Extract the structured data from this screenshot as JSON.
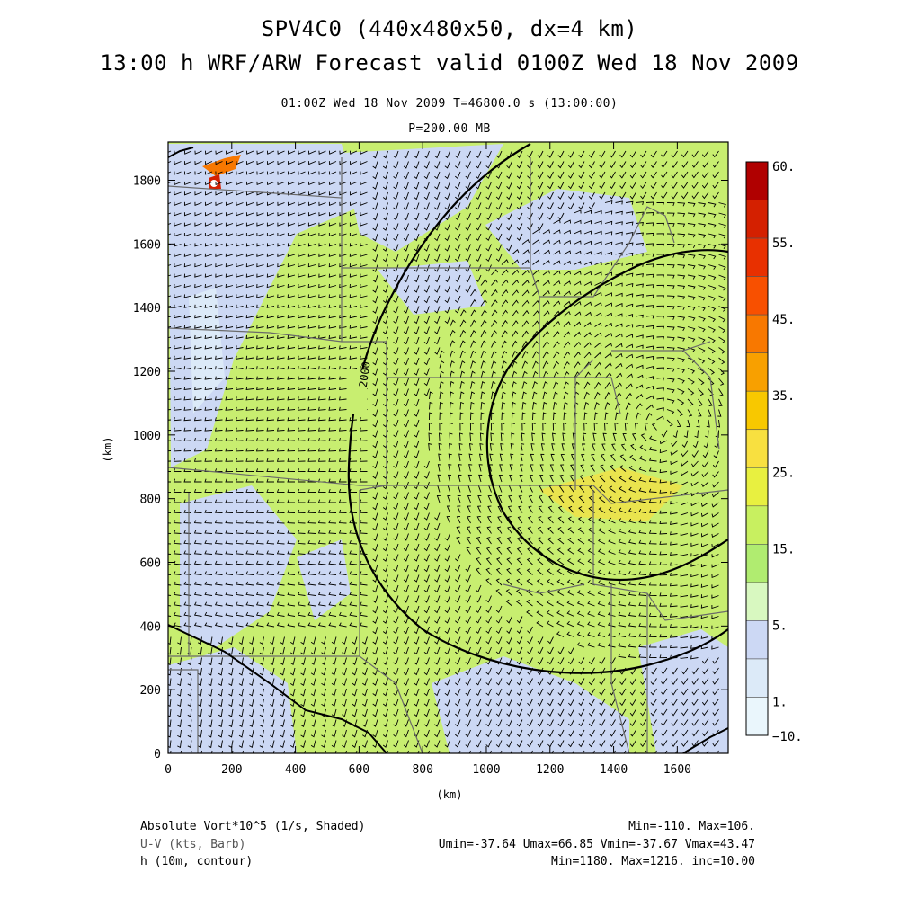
{
  "header": {
    "title1": "SPV4C0 (440x480x50, dx=4 km)",
    "title2": "13:00 h WRF/ARW Forecast valid 0100Z Wed 18 Nov 2009",
    "subtitle_time": "01:00Z Wed 18 Nov 2009     T=46800.0 s (13:00:00)",
    "subtitle_level": "P=200.00 MB"
  },
  "axes": {
    "x_label": "(km)",
    "y_label": "(km)",
    "x_range": [
      0,
      1760
    ],
    "y_range": [
      0,
      1920
    ],
    "x_ticks": [
      "0",
      "200",
      "400",
      "600",
      "800",
      "1000",
      "1200",
      "1400",
      "1600"
    ],
    "y_ticks": [
      "0",
      "200",
      "400",
      "600",
      "800",
      "1000",
      "1200",
      "1400",
      "1600",
      "1800"
    ]
  },
  "colorbar": {
    "labels": [
      "60.",
      "55.",
      "45.",
      "35.",
      "25.",
      "15.",
      "5.",
      "1.",
      "−10."
    ],
    "colors": [
      "#b00000",
      "#d42000",
      "#e83000",
      "#f85000",
      "#f87800",
      "#f8a000",
      "#f8c800",
      "#f8e040",
      "#e8f040",
      "#c8f060",
      "#b0ec70",
      "#d8f8c0",
      "#ccd8f4",
      "#dceaf8",
      "#eaf6fc"
    ]
  },
  "contour": {
    "label": "2000"
  },
  "footer": {
    "line1_left": "Absolute Vort*10^5 (1/s, Shaded)",
    "line1_right": "Min=-110. Max=106.",
    "line2_left": "U-V (kts, Barb)",
    "line2_right": "Umin=-37.64 Umax=66.85 Vmin=-37.67 Vmax=43.47",
    "line3_left": "h (10m, contour)",
    "line3_right": "Min=1180. Max=1216. inc=10.00"
  }
}
